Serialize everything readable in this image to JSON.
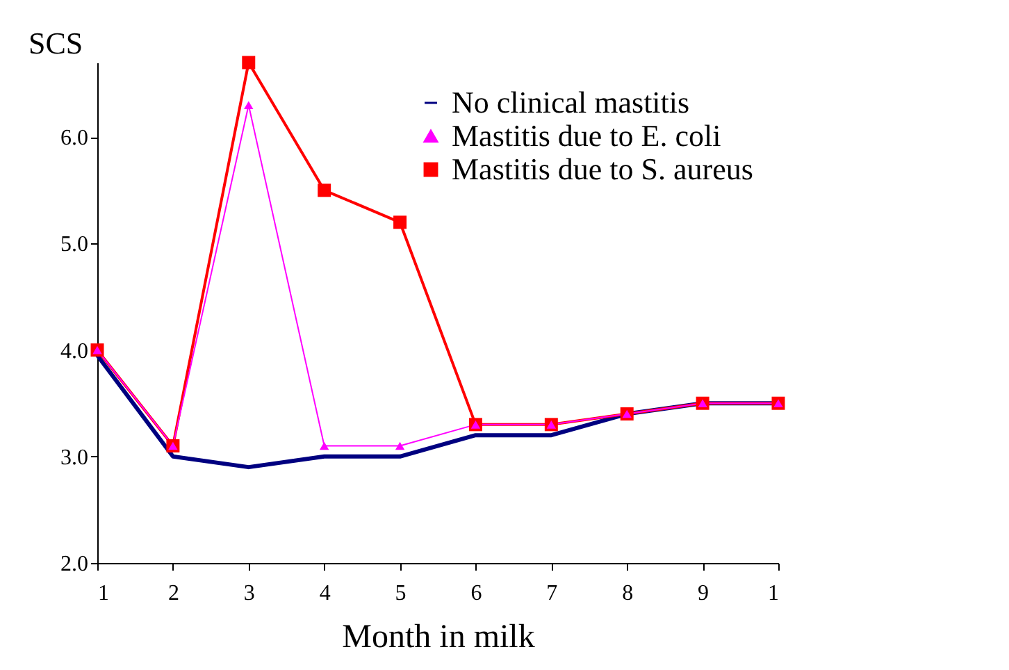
{
  "chart_data": {
    "type": "line",
    "xlabel": "Month in milk",
    "ylabel": "SCS",
    "categories": [
      "1",
      "2",
      "3",
      "4",
      "5",
      "6",
      "7",
      "8",
      "9",
      "1"
    ],
    "ylim": [
      2,
      6.7
    ],
    "yticks": [
      {
        "value": 2,
        "label": "2.0"
      },
      {
        "value": 3,
        "label": "3.0"
      },
      {
        "value": 4,
        "label": "4.0"
      },
      {
        "value": 5,
        "label": "5.0"
      },
      {
        "value": 6,
        "label": "6.0"
      }
    ],
    "grid": false,
    "legend": "top right",
    "series": [
      {
        "name": "No clinical mastitis",
        "color": "#000080",
        "marker": "none",
        "values": [
          3.95,
          3.0,
          2.9,
          3.0,
          3.0,
          3.2,
          3.2,
          3.4,
          3.5,
          3.5
        ]
      },
      {
        "name": "Mastitis due to E. coli",
        "color": "#ff00ff",
        "marker": "triangle",
        "values": [
          4.0,
          3.1,
          6.3,
          3.1,
          3.1,
          3.3,
          3.3,
          3.4,
          3.5,
          3.5
        ]
      },
      {
        "name": "Mastitis due to S. aureus",
        "color": "#ff0000",
        "marker": "square",
        "values": [
          4.0,
          3.1,
          6.7,
          5.5,
          5.2,
          3.3,
          3.3,
          3.4,
          3.5,
          3.5
        ]
      }
    ]
  }
}
